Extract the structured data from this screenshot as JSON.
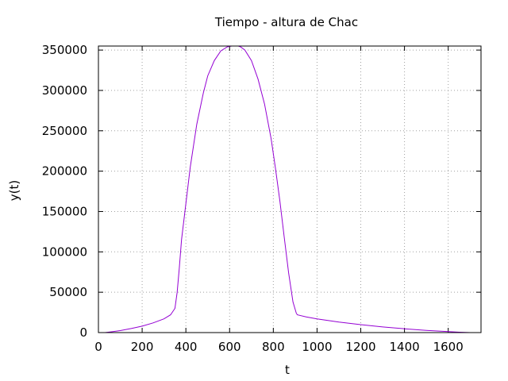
{
  "chart_data": {
    "type": "line",
    "title": "Tiempo - altura de Chac",
    "xlabel": "t",
    "ylabel": "y(t)",
    "xlim": [
      0,
      1750
    ],
    "ylim": [
      0,
      355000
    ],
    "xticks": [
      "0",
      "200",
      "400",
      "600",
      "800",
      "1000",
      "1200",
      "1400",
      "1600"
    ],
    "yticks": [
      "0",
      "50000",
      "100000",
      "150000",
      "200000",
      "250000",
      "300000",
      "350000"
    ],
    "grid": true,
    "line_color": "#9400d3",
    "series": [
      {
        "x": [
          30,
          60,
          100,
          150,
          200,
          250,
          300,
          330,
          350,
          360,
          370,
          380,
          400,
          420,
          450,
          480,
          500,
          530,
          560,
          590,
          610,
          630,
          640,
          650,
          670,
          700,
          730,
          760,
          790,
          810,
          830,
          850,
          870,
          890,
          905,
          910,
          950,
          1000,
          1100,
          1200,
          1300,
          1400,
          1500,
          1600,
          1650,
          1700
        ],
        "y": [
          0,
          1000,
          2500,
          5000,
          8000,
          12000,
          17000,
          22000,
          30000,
          50000,
          80000,
          115000,
          160000,
          205000,
          258000,
          297000,
          318000,
          337000,
          349000,
          354000,
          355000,
          355000,
          355000,
          354000,
          350000,
          337000,
          314000,
          283000,
          240000,
          203000,
          163000,
          118000,
          74000,
          38000,
          24000,
          22000,
          19500,
          17000,
          13000,
          9800,
          7000,
          4700,
          2800,
          1300,
          500,
          0
        ]
      }
    ]
  }
}
